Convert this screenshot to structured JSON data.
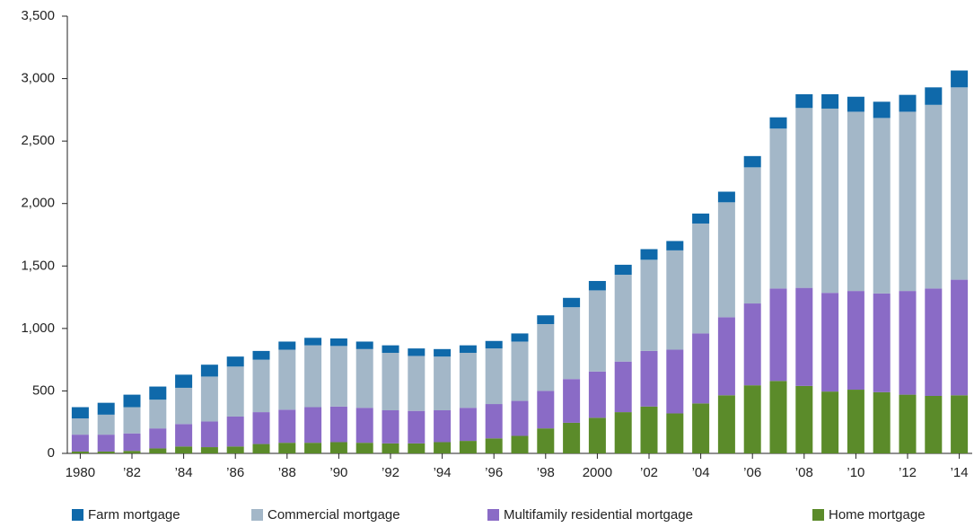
{
  "chart_data": {
    "type": "stacked_bar",
    "categories": [
      "1980",
      null,
      "’82",
      null,
      "’84",
      null,
      "’86",
      null,
      "’88",
      null,
      "’90",
      null,
      "’92",
      null,
      "’94",
      null,
      "’96",
      null,
      "’98",
      null,
      "2000",
      null,
      "’02",
      null,
      "’04",
      null,
      "’06",
      null,
      "’08",
      null,
      "’10",
      null,
      "’12",
      null,
      "’14"
    ],
    "series": [
      {
        "name": "Farm mortgage",
        "color": "#0f69aa",
        "values": [
          90,
          95,
          100,
          105,
          105,
          95,
          80,
          70,
          65,
          60,
          60,
          60,
          60,
          60,
          60,
          60,
          60,
          65,
          70,
          75,
          75,
          80,
          85,
          75,
          80,
          85,
          90,
          90,
          110,
          115,
          120,
          130,
          135,
          140,
          135
        ]
      },
      {
        "name": "Commercial mortgage",
        "color": "#a3b7c8",
        "values": [
          130,
          160,
          210,
          230,
          290,
          360,
          400,
          420,
          480,
          495,
          485,
          470,
          460,
          440,
          430,
          440,
          445,
          475,
          535,
          575,
          650,
          695,
          730,
          795,
          880,
          920,
          1090,
          1280,
          1440,
          1475,
          1435,
          1405,
          1435,
          1470,
          1540
        ]
      },
      {
        "name": "Multifamily residential mortgage",
        "color": "#8a6bc6",
        "values": [
          135,
          135,
          140,
          160,
          180,
          205,
          240,
          255,
          265,
          285,
          285,
          280,
          265,
          260,
          255,
          265,
          275,
          280,
          300,
          350,
          370,
          405,
          445,
          510,
          560,
          625,
          655,
          740,
          785,
          790,
          790,
          790,
          830,
          860,
          925
        ]
      },
      {
        "name": "Home mortgage",
        "color": "#5b8b2a",
        "values": [
          15,
          15,
          20,
          40,
          55,
          50,
          55,
          75,
          85,
          85,
          90,
          85,
          80,
          80,
          90,
          100,
          120,
          140,
          200,
          245,
          285,
          330,
          375,
          320,
          400,
          465,
          545,
          580,
          540,
          495,
          510,
          490,
          470,
          460,
          465
        ]
      }
    ],
    "ylim": [
      0,
      3500
    ],
    "yticks": [
      0,
      500,
      {
        "value": 1000,
        "label": "1,000"
      },
      {
        "value": 1500,
        "label": "1,500"
      },
      {
        "value": 2000,
        "label": "2,000"
      },
      {
        "value": 2500,
        "label": "2,500"
      },
      {
        "value": 3000,
        "label": "3,000"
      },
      {
        "value": 3500,
        "label": "3,500"
      }
    ]
  }
}
